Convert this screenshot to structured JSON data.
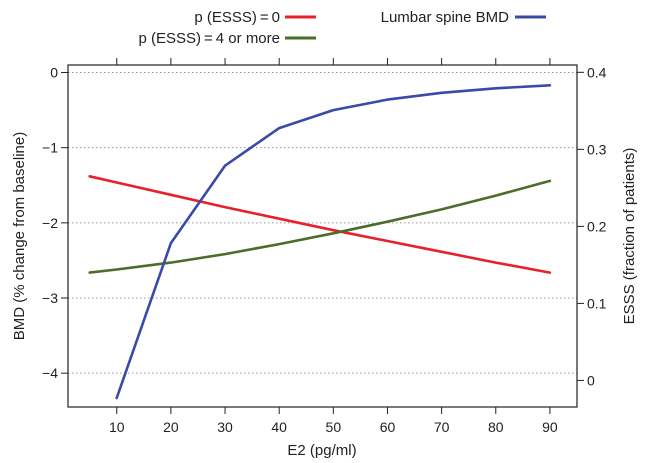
{
  "chart_data": {
    "type": "line",
    "xlabel": "E2 (pg/ml)",
    "ylabel_left": "BMD (% change from baseline)",
    "ylabel_right": "ESSS (fraction of patients)",
    "x_ticks": [
      10,
      20,
      30,
      40,
      50,
      60,
      70,
      80,
      90
    ],
    "xlim": [
      1,
      95
    ],
    "y_left_ticks": [
      0,
      -1,
      -2,
      -3,
      -4
    ],
    "y_left_tick_labels": [
      "0",
      "−1",
      "−2",
      "−3",
      "−4"
    ],
    "y_left_lim": [
      -4.45,
      0.1
    ],
    "y_right_ticks": [
      0,
      0.1,
      0.2,
      0.3,
      0.4
    ],
    "y_right_tick_labels": [
      "0",
      "0.1",
      "0.2",
      "0.3",
      "0.4"
    ],
    "grid": "horizontal dotted",
    "legend_position": "top",
    "series": [
      {
        "name": "p (ESSS) = 0",
        "legend_label": "p (ESSS) = 0",
        "axis": "right",
        "color": "#e8202a",
        "x": [
          5,
          10,
          20,
          30,
          40,
          50,
          60,
          70,
          80,
          90
        ],
        "y": [
          0.265,
          0.257,
          0.241,
          0.225,
          0.21,
          0.195,
          0.181,
          0.167,
          0.153,
          0.14
        ]
      },
      {
        "name": "p (ESSS) = 4 or more",
        "legend_label": "p (ESSS) = 4 or more",
        "axis": "right",
        "color": "#4a6e2a",
        "x": [
          5,
          10,
          20,
          30,
          40,
          50,
          60,
          70,
          80,
          90
        ],
        "y": [
          0.14,
          0.144,
          0.153,
          0.164,
          0.177,
          0.191,
          0.206,
          0.222,
          0.24,
          0.259
        ]
      },
      {
        "name": "Lumbar spine BMD",
        "legend_label": "Lumbar spine BMD",
        "axis": "left",
        "color": "#3a4aa8",
        "x": [
          10,
          20,
          30,
          40,
          50,
          60,
          70,
          80,
          90
        ],
        "y": [
          -4.33,
          -2.27,
          -1.24,
          -0.74,
          -0.5,
          -0.36,
          -0.27,
          -0.21,
          -0.17
        ]
      }
    ]
  }
}
